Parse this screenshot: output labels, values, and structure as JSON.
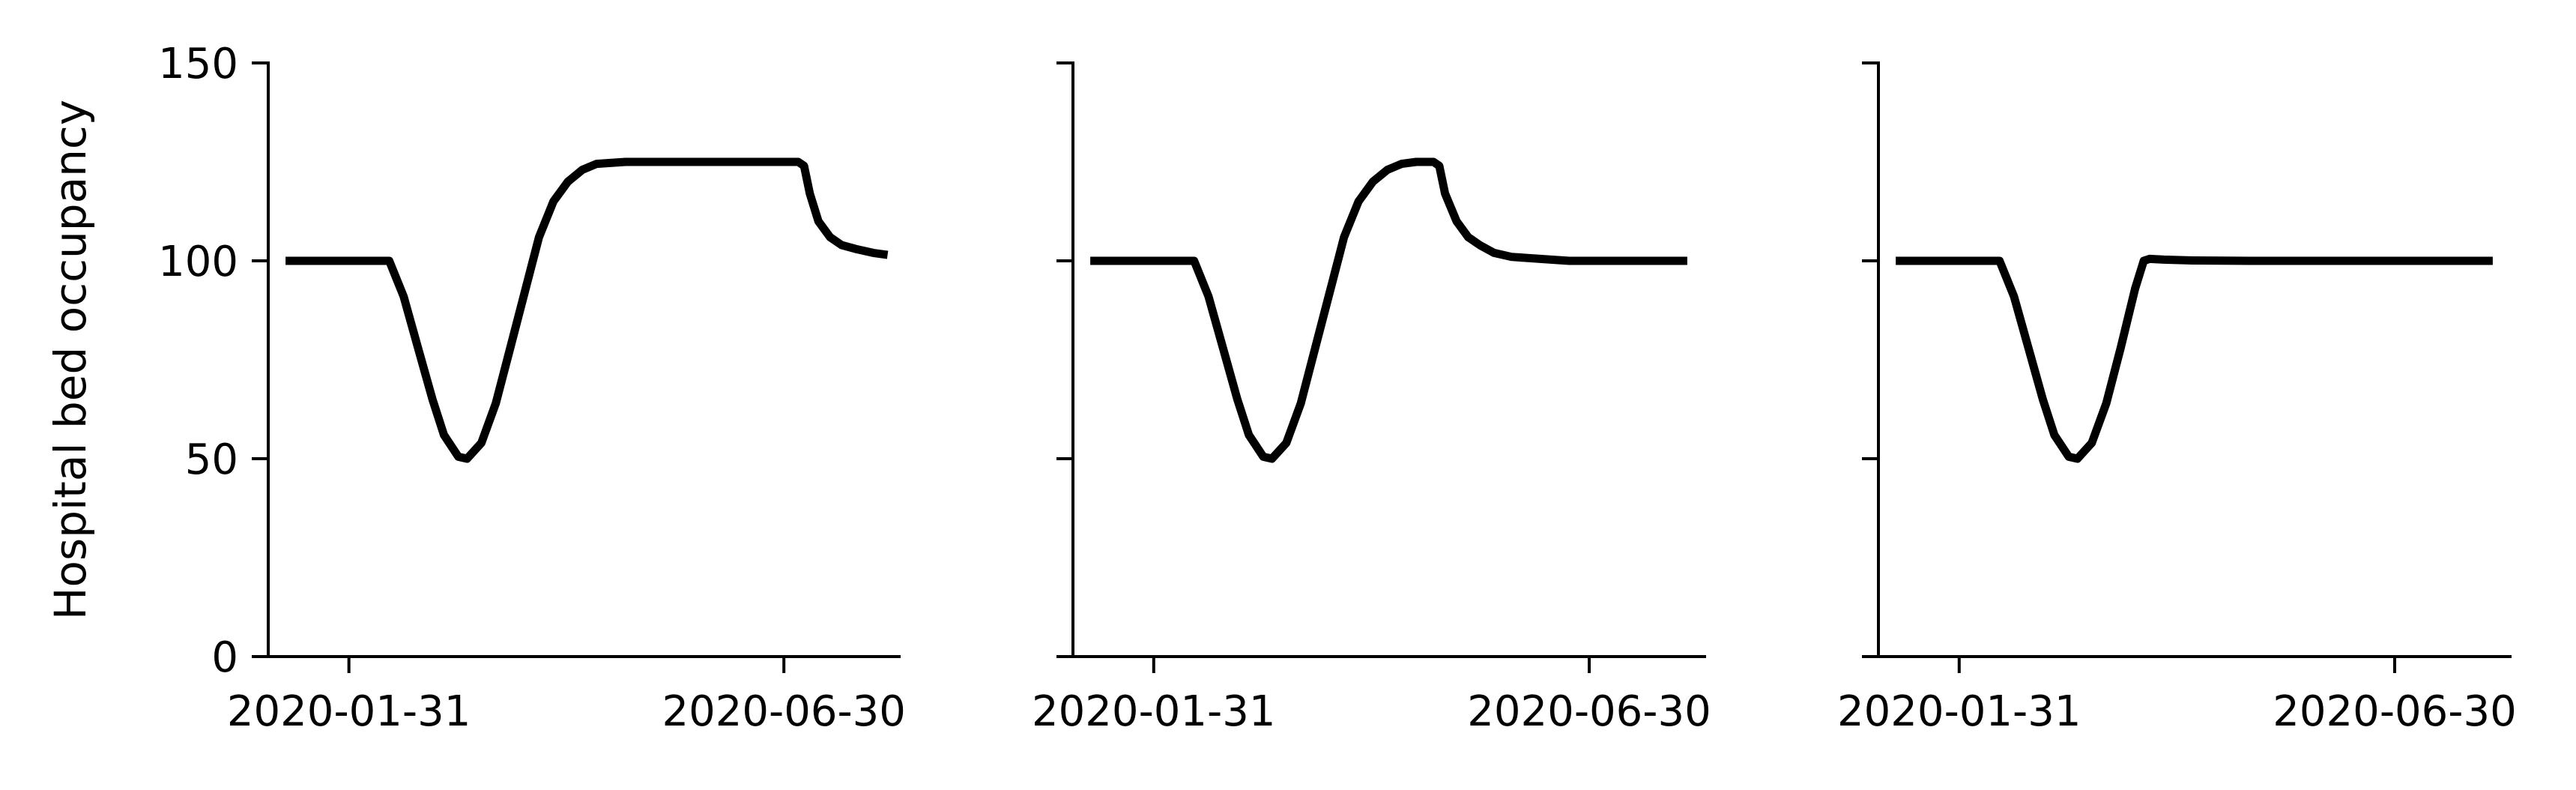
{
  "chart_data": [
    {
      "type": "line",
      "ylabel": "Hospital bed occupancy",
      "ylim": [
        0,
        150
      ],
      "yticks": [
        0,
        50,
        100,
        150
      ],
      "ytick_labels": [
        "0",
        "50",
        "100",
        "150"
      ],
      "xlim": [
        "2020-01-03",
        "2020-08-09"
      ],
      "xticks": [
        "2020-01-31",
        "2020-06-30"
      ],
      "xtick_labels": [
        "2020-01-31",
        "2020-06-30"
      ],
      "grid": false,
      "line_color": "#000000",
      "series": [
        {
          "x": [
            "2020-01-09",
            "2020-01-25",
            "2020-02-09",
            "2020-02-14",
            "2020-02-19",
            "2020-02-24",
            "2020-02-29",
            "2020-03-04",
            "2020-03-09",
            "2020-03-12",
            "2020-03-17",
            "2020-03-22",
            "2020-03-27",
            "2020-04-01",
            "2020-04-06",
            "2020-04-11",
            "2020-04-16",
            "2020-04-21",
            "2020-04-26",
            "2020-05-06",
            "2020-05-16",
            "2020-06-01",
            "2020-06-16",
            "2020-06-25",
            "2020-07-05",
            "2020-07-07",
            "2020-07-09",
            "2020-07-12",
            "2020-07-16",
            "2020-07-20",
            "2020-07-25",
            "2020-07-31",
            "2020-08-05"
          ],
          "y": [
            100,
            100,
            100,
            100,
            91,
            78,
            65,
            56,
            50.5,
            50,
            54,
            64,
            78,
            92,
            106,
            115,
            120,
            123,
            124.5,
            125,
            125,
            125,
            125,
            125,
            125,
            124,
            117,
            110,
            106,
            104,
            103,
            102,
            101.5
          ]
        }
      ]
    },
    {
      "type": "line",
      "ylim": [
        0,
        150
      ],
      "yticks": [
        0,
        50,
        100,
        150
      ],
      "xlim": [
        "2020-01-03",
        "2020-08-09"
      ],
      "xticks": [
        "2020-01-31",
        "2020-06-30"
      ],
      "xtick_labels": [
        "2020-01-31",
        "2020-06-30"
      ],
      "grid": false,
      "line_color": "#000000",
      "series": [
        {
          "x": [
            "2020-01-09",
            "2020-01-25",
            "2020-02-09",
            "2020-02-14",
            "2020-02-19",
            "2020-02-24",
            "2020-02-29",
            "2020-03-04",
            "2020-03-09",
            "2020-03-12",
            "2020-03-17",
            "2020-03-22",
            "2020-03-27",
            "2020-04-01",
            "2020-04-06",
            "2020-04-11",
            "2020-04-16",
            "2020-04-21",
            "2020-04-26",
            "2020-05-01",
            "2020-05-07",
            "2020-05-09",
            "2020-05-11",
            "2020-05-15",
            "2020-05-19",
            "2020-05-23",
            "2020-05-28",
            "2020-06-03",
            "2020-06-13",
            "2020-06-23",
            "2020-07-03",
            "2020-07-13",
            "2020-07-23",
            "2020-08-03"
          ],
          "y": [
            100,
            100,
            100,
            100,
            91,
            78,
            65,
            56,
            50.5,
            50,
            54,
            64,
            78,
            92,
            106,
            115,
            120,
            123,
            124.5,
            125,
            125,
            124,
            117,
            110,
            106,
            104,
            102,
            101,
            100.5,
            100,
            100,
            100,
            100,
            100
          ]
        }
      ]
    },
    {
      "type": "line",
      "ylim": [
        0,
        150
      ],
      "yticks": [
        0,
        50,
        100,
        150
      ],
      "xlim": [
        "2020-01-03",
        "2020-08-09"
      ],
      "xticks": [
        "2020-01-31",
        "2020-06-30"
      ],
      "xtick_labels": [
        "2020-01-31",
        "2020-06-30"
      ],
      "grid": false,
      "line_color": "#000000",
      "series": [
        {
          "x": [
            "2020-01-09",
            "2020-01-25",
            "2020-02-09",
            "2020-02-14",
            "2020-02-19",
            "2020-02-24",
            "2020-02-29",
            "2020-03-04",
            "2020-03-09",
            "2020-03-12",
            "2020-03-17",
            "2020-03-22",
            "2020-03-27",
            "2020-04-01",
            "2020-04-04",
            "2020-04-06",
            "2020-04-11",
            "2020-04-21",
            "2020-05-11",
            "2020-06-01",
            "2020-06-21",
            "2020-07-11",
            "2020-07-31",
            "2020-08-03"
          ],
          "y": [
            100,
            100,
            100,
            100,
            91,
            78,
            65,
            56,
            50.5,
            50,
            54,
            64,
            78,
            93,
            100,
            100.5,
            100.3,
            100.1,
            100,
            100,
            100,
            100,
            100,
            100
          ]
        }
      ]
    }
  ]
}
